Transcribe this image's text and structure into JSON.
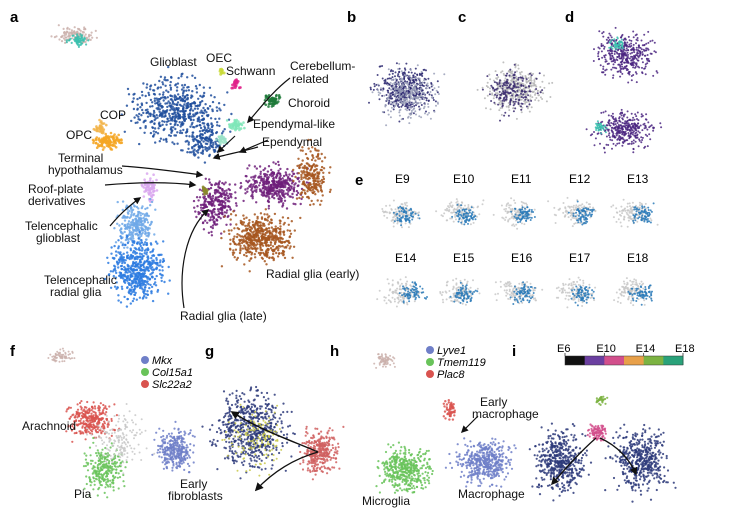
{
  "colors": {
    "glioblast": "#1f4e9c",
    "opc": "#f5a623",
    "cop": "#f2b44a",
    "oec": "#c9d93a",
    "schwann": "#e0218a",
    "cerebellum": "#7fe6b8",
    "choroid": "#1f7a3a",
    "ependymal_like": "#9be3c8",
    "roof": "#d9a7ee",
    "tel_glioblast": "#6fa8e8",
    "tel_radial": "#2d7be0",
    "radial_early": "#a6561e",
    "radial_late": "#6e1f7a",
    "mkx": "#6f7fc8",
    "col15a1": "#69c35a",
    "slc22a2": "#d9534f",
    "lyve1": "#6f7fc8",
    "tmem119": "#69c35a",
    "plac8": "#d9534f",
    "timeline_blue": "#2a7ab8"
  },
  "panels": {
    "a": {
      "letter": "a",
      "labels": {
        "glioblast": "Glioblast",
        "oec": "OEC",
        "schwann": "Schwann",
        "cerebellum": "Cerebellum-\nrelated",
        "cop": "COP",
        "opc": "OPC",
        "choroid": "Choroid",
        "ependymal_like": "Ependymal-like",
        "ependymal": "Ependymal",
        "terminal_hypothalamus": "Terminal\nhypothalamus",
        "roof_plate": "Roof-plate\nderivatives",
        "tel_glioblast": "Telencephalic\nglioblast",
        "tel_radial": "Telencephalic\nradial glia",
        "radial_early": "Radial glia (early)",
        "radial_late": "Radial glia (late)"
      }
    },
    "b": {
      "letter": "b"
    },
    "c": {
      "letter": "c"
    },
    "d": {
      "letter": "d"
    },
    "e": {
      "letter": "e",
      "ages": [
        "E9",
        "E10",
        "E11",
        "E12",
        "E13",
        "E14",
        "E15",
        "E16",
        "E17",
        "E18"
      ]
    },
    "f": {
      "letter": "f",
      "legend": [
        "Mkx",
        "Col15a1",
        "Slc22a2"
      ],
      "labels": {
        "arachnoid": "Arachnoid",
        "pia": "Pia",
        "early_fibroblasts": "Early\nfibroblasts"
      }
    },
    "g": {
      "letter": "g"
    },
    "h": {
      "letter": "h",
      "legend": [
        "Lyve1",
        "Tmem119",
        "Plac8"
      ],
      "labels": {
        "early_macrophage": "Early\nmacrophage",
        "microglia": "Microglia",
        "macrophage": "Macrophage"
      }
    },
    "i": {
      "letter": "i",
      "colorbar_ticks": [
        "E6",
        "E10",
        "E14",
        "E18"
      ],
      "colorbar_colors": [
        "#111111",
        "#6b3fa0",
        "#d24f8c",
        "#e8a04a",
        "#7cb342",
        "#2aa27a"
      ]
    }
  }
}
